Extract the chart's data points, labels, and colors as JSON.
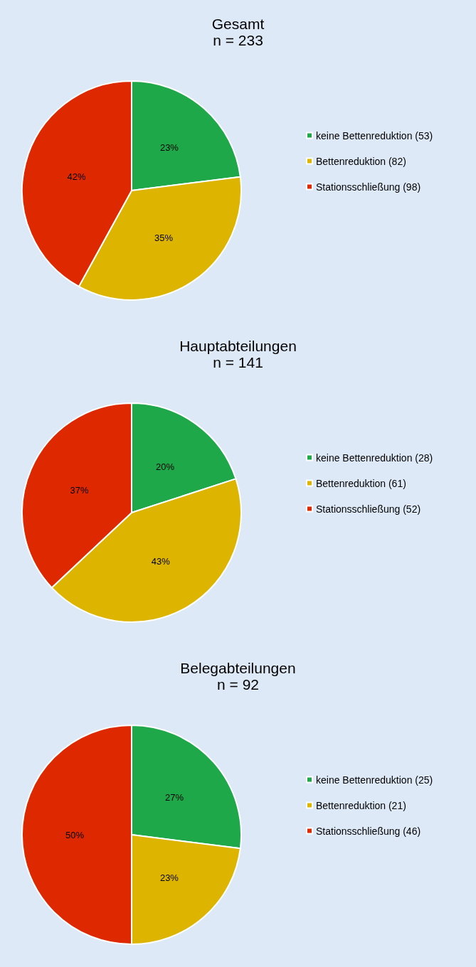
{
  "chart_data": [
    {
      "type": "pie",
      "title": "Gesamt",
      "subtitle": "n = 233",
      "categories": [
        "keine Bettenreduktion (53)",
        "Bettenreduktion (82)",
        "Stationsschließung (98)"
      ],
      "values": [
        23,
        35,
        42
      ],
      "value_labels": [
        "23%",
        "35%",
        "42%"
      ],
      "colors": [
        "#1ea84a",
        "#ddb400",
        "#dd2800"
      ],
      "legend": "right"
    },
    {
      "type": "pie",
      "title": "Hauptabteilungen",
      "subtitle": "n = 141",
      "categories": [
        "keine Bettenreduktion (28)",
        "Bettenreduktion (61)",
        "Stationsschließung (52)"
      ],
      "values": [
        20,
        43,
        37
      ],
      "value_labels": [
        "20%",
        "43%",
        "37%"
      ],
      "colors": [
        "#1ea84a",
        "#ddb400",
        "#dd2800"
      ],
      "legend": "right"
    },
    {
      "type": "pie",
      "title": "Belegabteilungen",
      "subtitle": "n = 92",
      "categories": [
        "keine Bettenreduktion (25)",
        "Bettenreduktion (21)",
        "Stationsschließung (46)"
      ],
      "values": [
        27,
        23,
        50
      ],
      "value_labels": [
        "27%",
        "23%",
        "50%"
      ],
      "colors": [
        "#1ea84a",
        "#ddb400",
        "#dd2800"
      ],
      "legend": "right"
    }
  ]
}
